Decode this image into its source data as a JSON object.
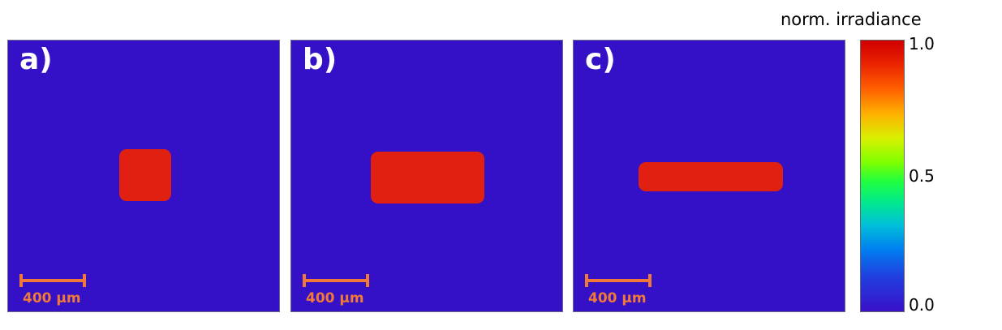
{
  "panels": [
    {
      "label": "a)",
      "scale_text": "400 µm"
    },
    {
      "label": "b)",
      "scale_text": "400 µm"
    },
    {
      "label": "c)",
      "scale_text": "400 µm"
    }
  ],
  "colorbar": {
    "title": "norm. irradiance",
    "max_label": "1.0",
    "mid_label": "0.5",
    "min_label": "0.0"
  },
  "colors": {
    "background": "#3410c6",
    "spot": "#e02010",
    "scalebar": "#f07838"
  }
}
